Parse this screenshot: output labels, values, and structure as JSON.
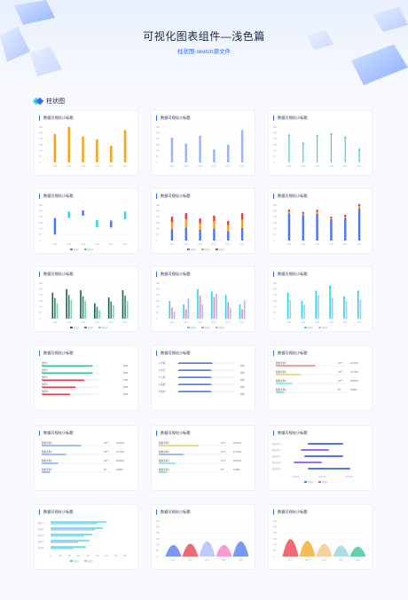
{
  "header": {
    "title": "可视化图表组件—浅色篇",
    "subtitle": "柱状图-sketch源文件"
  },
  "section": {
    "label": "柱状图"
  },
  "colors": {
    "accent": "#2f6bff",
    "orange": "#f0a51d",
    "periwinkle": "#9fb3ee",
    "cyan": "#2fd3e0",
    "blue": "#4f74f0",
    "green": "#2ec28a",
    "red": "#e63946",
    "pink": "#f07bc0",
    "teal_dark": "#17605a"
  },
  "chart_title": "数据可视化小标题",
  "chart_data": [
    {
      "id": 1,
      "type": "bar",
      "categories": [
        "01月",
        "02月",
        "03月",
        "04月",
        "05月",
        "06月"
      ],
      "series": [
        {
          "values": [
            240,
            300,
            220,
            195,
            140,
            275
          ]
        }
      ],
      "ylim": [
        0,
        300
      ],
      "yticks": [
        "0",
        "50",
        "100",
        "150",
        "200",
        "250",
        "300"
      ]
    },
    {
      "id": 2,
      "type": "bar",
      "categories": [
        "01月",
        "02月",
        "03月",
        "04月",
        "05月",
        "06月"
      ],
      "series": [
        {
          "values": [
            210,
            160,
            225,
            110,
            150,
            275
          ]
        }
      ],
      "ylim": [
        0,
        300
      ],
      "yticks": [
        "0",
        "50",
        "100",
        "150",
        "200",
        "250",
        "300"
      ]
    },
    {
      "id": 3,
      "type": "bar",
      "categories": [
        "01月",
        "02月",
        "03月",
        "04月",
        "05月",
        "06月"
      ],
      "series": [
        {
          "values": [
            230,
            160,
            225,
            240,
            210,
            110
          ]
        }
      ],
      "ylim": [
        0,
        300
      ],
      "yticks": [
        "0",
        "50",
        "100",
        "150",
        "200",
        "250",
        "300"
      ]
    },
    {
      "id": 4,
      "type": "bar",
      "categories": [
        "01月",
        "02月",
        "03月",
        "04月",
        "05月",
        "06月"
      ],
      "series": [
        {
          "ranges": [
            [
              50,
              190
            ],
            [
              190,
              245
            ],
            [
              210,
              255
            ],
            [
              110,
              175
            ],
            [
              110,
              170
            ],
            [
              180,
              245
            ]
          ]
        }
      ],
      "ylim": [
        0,
        300
      ],
      "yticks": [
        "0",
        "50",
        "100",
        "150",
        "200",
        "250",
        "300"
      ],
      "legend": [
        "数据1",
        "数据2"
      ]
    },
    {
      "id": 5,
      "type": "bar",
      "categories": [
        "01月",
        "02月",
        "03月",
        "04月",
        "05月",
        "06月"
      ],
      "series": [
        {
          "name": "数据1",
          "values": [
            95,
            110,
            90,
            100,
            80,
            105
          ]
        },
        {
          "name": "数据2",
          "values": [
            60,
            70,
            55,
            65,
            50,
            70
          ]
        },
        {
          "name": "数据3",
          "values": [
            40,
            45,
            35,
            40,
            30,
            50
          ]
        }
      ],
      "ylim": [
        0,
        300
      ],
      "yticks": [
        "0",
        "50",
        "100",
        "150",
        "200",
        "250",
        "300"
      ]
    },
    {
      "id": 6,
      "type": "bar",
      "categories": [
        "01月",
        "02月",
        "03月",
        "04月",
        "05月",
        "06月"
      ],
      "series": [
        {
          "name": "数据1",
          "values": [
            230,
            215,
            225,
            180,
            190,
            270
          ]
        },
        {
          "name": "数据2",
          "values": [
            15,
            12,
            18,
            10,
            12,
            20
          ]
        },
        {
          "name": "数据3",
          "values": [
            10,
            8,
            10,
            6,
            8,
            12
          ]
        }
      ],
      "ylim": [
        0,
        300
      ],
      "yticks": [
        "0",
        "50",
        "100",
        "150",
        "200",
        "250",
        "300"
      ]
    },
    {
      "id": 7,
      "type": "bar",
      "categories": [
        "01月",
        "02月",
        "03月",
        "04月",
        "05月",
        "06月"
      ],
      "series": [
        {
          "name": "数据1",
          "values": [
            220,
            250,
            240,
            130,
            180,
            240
          ]
        },
        {
          "name": "数据2",
          "values": [
            175,
            200,
            190,
            100,
            145,
            195
          ]
        },
        {
          "name": "数据3",
          "values": [
            130,
            160,
            150,
            70,
            115,
            150
          ]
        }
      ],
      "ylim": [
        0,
        300
      ],
      "yticks": [
        "0",
        "50",
        "100",
        "150",
        "200",
        "250",
        "300"
      ]
    },
    {
      "id": 8,
      "type": "bar",
      "categories": [
        "01月",
        "02月",
        "03月",
        "04月",
        "05月",
        "06月"
      ],
      "series": [
        {
          "name": "数据1",
          "values": [
            150,
            120,
            250,
            230,
            200,
            120
          ]
        },
        {
          "name": "数据2",
          "values": [
            95,
            80,
            195,
            185,
            140,
            80
          ]
        },
        {
          "name": "数据3",
          "values": [
            60,
            170,
            120,
            210,
            90,
            155
          ]
        }
      ],
      "ylim": [
        0,
        300
      ],
      "yticks": [
        "0",
        "50",
        "100",
        "150",
        "200",
        "250",
        "300"
      ]
    },
    {
      "id": 9,
      "type": "bar",
      "categories": [
        "01月",
        "02月",
        "03月",
        "04月",
        "05月",
        "06月"
      ],
      "series": [
        {
          "name": "数据1",
          "values": [
            210,
            140,
            230,
            270,
            180,
            230
          ]
        },
        {
          "name": "数据2",
          "values": [
            150,
            110,
            190,
            170,
            140,
            150
          ]
        }
      ],
      "ylim": [
        0,
        300
      ],
      "yticks": [
        "0",
        "50",
        "100",
        "150",
        "200",
        "250",
        "300"
      ]
    },
    {
      "id": 10,
      "type": "bar",
      "orientation": "horizontal",
      "categories": [
        "类型1",
        "类型2",
        "类型3",
        "类型4",
        "类型5"
      ],
      "values": [
        90,
        90,
        75,
        60,
        50
      ],
      "value_labels": [
        "90%",
        "90%",
        "75%",
        "60%",
        "50%"
      ]
    },
    {
      "id": 11,
      "type": "bar",
      "orientation": "horizontal",
      "categories": [
        "华南",
        "北京",
        "上海",
        "深圳",
        "杭州"
      ],
      "ranks": [
        "1",
        "2",
        "3",
        "4",
        "5"
      ],
      "values": [
        600,
        580,
        580,
        580,
        580
      ],
      "value_labels": [
        "600",
        "580",
        "580",
        "580",
        "580"
      ],
      "xlim": [
        0,
        1000
      ]
    },
    {
      "id": 12,
      "type": "bar",
      "orientation": "horizontal",
      "categories": [
        "数据名称1",
        "数据名称1",
        "数据名称1",
        "数据名称1"
      ],
      "counts": [
        "24个",
        "15个",
        "10个",
        "8个"
      ],
      "percents": [
        "44.44%",
        "27.76%",
        "18.52%",
        "9.36%"
      ],
      "values": [
        44.44,
        27.76,
        18.52,
        9.36
      ]
    },
    {
      "id": 13,
      "type": "bar",
      "orientation": "horizontal",
      "categories": [
        "数据名称1",
        "数据名称1",
        "数据名称1",
        "数据名称1"
      ],
      "counts": [
        "24个",
        "15个",
        "10个",
        "8个"
      ],
      "percents": [
        "44.44%",
        "27.76%",
        "18.52%",
        "9.36%"
      ],
      "values": [
        44.44,
        27.76,
        18.52,
        9.36
      ]
    },
    {
      "id": 14,
      "type": "bar",
      "orientation": "horizontal",
      "categories": [
        "数据名称1",
        "数据名称1",
        "数据名称1",
        "数据名称1"
      ],
      "counts": [
        "24个",
        "15个",
        "10个",
        "8个"
      ],
      "percents": [
        "44.44%",
        "27.76%",
        "18.52%",
        "9.36%"
      ],
      "values": [
        44.44,
        27.76,
        18.52,
        9.36
      ]
    },
    {
      "id": 15,
      "type": "bar",
      "orientation": "horizontal",
      "categories": [
        "数据名称",
        "数据名称",
        "数据名称",
        "数据名称",
        "数据名称"
      ],
      "series": [
        {
          "ranges": [
            [
              0.3,
              0.8
            ],
            [
              0.2,
              0.6
            ],
            [
              0.25,
              0.8
            ],
            [
              0.1,
              0.5
            ],
            [
              0.3,
              0.9
            ]
          ]
        }
      ],
      "xticks": [
        "2020/02",
        "2020/03",
        "2020/04"
      ],
      "legend": [
        "数据1",
        "数据2"
      ]
    },
    {
      "id": 16,
      "type": "bar",
      "orientation": "horizontal",
      "categories": [
        "数据1",
        "数据2",
        "数据3",
        "数据4",
        "数据5"
      ],
      "series": [
        {
          "name": "数据1",
          "values": [
            600,
            560,
            450,
            420,
            380
          ]
        },
        {
          "name": "数据2",
          "values": [
            500,
            480,
            360,
            300,
            250
          ]
        }
      ],
      "xlim": [
        0,
        800
      ],
      "xticks": [
        "0",
        "100",
        "200",
        "300",
        "400",
        "500",
        "600",
        "700",
        "800"
      ],
      "legend": [
        "数据1",
        "数据2"
      ]
    },
    {
      "id": 17,
      "type": "area",
      "categories": [
        "01月",
        "02月",
        "03月",
        "04月",
        "05月"
      ],
      "series": [
        {
          "values": [
            180,
            200,
            240,
            180,
            240
          ]
        }
      ],
      "ylim": [
        0,
        300
      ],
      "yticks": [
        "0",
        "50",
        "100",
        "150",
        "200",
        "250",
        "300"
      ]
    },
    {
      "id": 18,
      "type": "area",
      "categories": [
        "01月",
        "02月",
        "03月",
        "04月",
        "05月"
      ],
      "series": [
        {
          "values": [
            280,
            250,
            200,
            170,
            150
          ]
        }
      ],
      "ylim": [
        0,
        300
      ],
      "yticks": [
        "0",
        "50",
        "100",
        "150",
        "200",
        "250",
        "300"
      ]
    }
  ]
}
